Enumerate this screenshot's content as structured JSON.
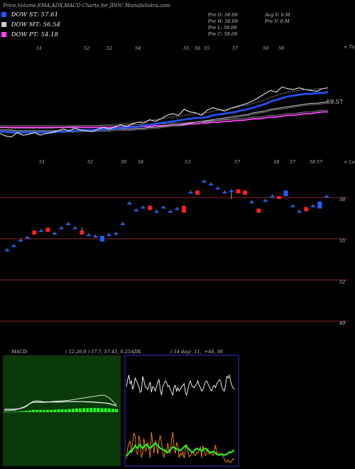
{
  "header": {
    "title": "Price,Volume,EMA,ADX,MACD Charts for JDOC MunafaSutra.com"
  },
  "legend": [
    {
      "label": "DOW ST: 57.61",
      "color": "#2255ff"
    },
    {
      "label": "DOW MT: 56.54",
      "color": "#cccccc"
    },
    {
      "label": "DOW PT: 54.18",
      "color": "#ff44ff"
    }
  ],
  "ohlc": {
    "open": "Pre   O: 58.09",
    "high": "Pre   H: 58.09",
    "low": "Pre   L: 58.09",
    "close": "Pre   C: 58.09",
    "avg_vol": "Avg V: 0   M",
    "pre_vol": "Pre   V: 0   M"
  },
  "top_panel": {
    "corner_label": "< Tops",
    "top_labels": [
      "51",
      "52",
      "52",
      "54",
      "55",
      "56",
      "55",
      "57",
      "59",
      "58"
    ],
    "price_label": "59.57",
    "bottom_labels": [
      "51",
      "51",
      "50",
      "54",
      "53",
      "57",
      "58",
      "57",
      "58",
      "57"
    ],
    "bottom_corner_label": "< Lows"
  },
  "colors": {
    "up": "#2060ff",
    "down": "#ff2222",
    "macd_bg": "#0a3a0a",
    "adx_border": "#3333cc"
  },
  "chart_data": [
    {
      "type": "line",
      "title": "EMA",
      "y_label": "59.57",
      "series": [
        {
          "name": "Price",
          "values": [
            56.8,
            56.5,
            56.4,
            56.9,
            56.6,
            56.7,
            56.9,
            56.6,
            56.8,
            56.9,
            57.1,
            57.3,
            57.1,
            57.4,
            57.2,
            57.1,
            57.0,
            57.3,
            57.5,
            57.3,
            57.6,
            57.8,
            57.6,
            57.9,
            58.1,
            58.0,
            58.4,
            58.2,
            58.5,
            58.9,
            59.1,
            58.9,
            59.6,
            59.3,
            59.2,
            58.9,
            59.5,
            59.8,
            59.6,
            59.4,
            59.7,
            59.9,
            60.1,
            60.3,
            60.6,
            61.0,
            61.4,
            61.8,
            61.6,
            62.2,
            62.0,
            61.9,
            62.1,
            61.9,
            61.8,
            61.7,
            62.0,
            62.1
          ]
        },
        {
          "name": "DOW ST",
          "values": [
            57.0,
            57.0,
            56.9,
            56.9,
            56.9,
            56.9,
            56.9,
            56.9,
            56.9,
            56.9,
            57.0,
            57.0,
            57.1,
            57.1,
            57.2,
            57.2,
            57.2,
            57.2,
            57.3,
            57.3,
            57.4,
            57.4,
            57.5,
            57.5,
            57.6,
            57.7,
            57.8,
            57.9,
            58.0,
            58.1,
            58.2,
            58.3,
            58.4,
            58.5,
            58.6,
            58.6,
            58.7,
            58.9,
            59.0,
            59.1,
            59.2,
            59.3,
            59.5,
            59.6,
            59.8,
            60.0,
            60.2,
            60.5,
            60.7,
            60.9,
            61.1,
            61.2,
            61.3,
            61.4,
            61.4,
            61.5,
            61.5,
            61.6
          ]
        },
        {
          "name": "DOW MT",
          "values": [
            57.2,
            57.2,
            57.2,
            57.1,
            57.1,
            57.1,
            57.1,
            57.1,
            57.1,
            57.1,
            57.1,
            57.1,
            57.1,
            57.1,
            57.1,
            57.2,
            57.2,
            57.2,
            57.2,
            57.2,
            57.3,
            57.3,
            57.3,
            57.3,
            57.4,
            57.4,
            57.5,
            57.5,
            57.6,
            57.7,
            57.8,
            57.8,
            57.9,
            58.0,
            58.1,
            58.2,
            58.3,
            58.4,
            58.5,
            58.6,
            58.7,
            58.8,
            58.9,
            59.0,
            59.2,
            59.3,
            59.4,
            59.6,
            59.7,
            59.8,
            59.9,
            60.0,
            60.1,
            60.2,
            60.3,
            60.3,
            60.4,
            60.5
          ]
        },
        {
          "name": "DOW PT",
          "values": [
            57.5,
            57.5,
            57.5,
            57.5,
            57.5,
            57.5,
            57.5,
            57.5,
            57.5,
            57.5,
            57.5,
            57.5,
            57.5,
            57.5,
            57.5,
            57.5,
            57.5,
            57.5,
            57.5,
            57.5,
            57.5,
            57.5,
            57.6,
            57.6,
            57.6,
            57.6,
            57.6,
            57.7,
            57.7,
            57.7,
            57.8,
            57.8,
            57.8,
            57.9,
            57.9,
            58.0,
            58.0,
            58.1,
            58.1,
            58.2,
            58.2,
            58.3,
            58.3,
            58.4,
            58.5,
            58.5,
            58.6,
            58.7,
            58.7,
            58.8,
            58.9,
            58.9,
            59.0,
            59.1,
            59.1,
            59.2,
            59.3,
            59.3
          ]
        }
      ]
    },
    {
      "type": "candlestick",
      "title": "Price",
      "y_ticks": [
        58,
        55,
        52,
        49
      ],
      "ylim": [
        48.5,
        60
      ],
      "candles": [
        {
          "o": 54.2,
          "c": 54.2,
          "h": 54.3,
          "l": 54.1,
          "d": "up"
        },
        {
          "o": 54.5,
          "c": 54.5,
          "h": 54.6,
          "l": 54.4,
          "d": "up"
        },
        {
          "o": 54.9,
          "c": 54.9,
          "h": 55.0,
          "l": 54.8,
          "d": "up"
        },
        {
          "o": 55.1,
          "c": 55.1,
          "h": 55.2,
          "l": 55.0,
          "d": "up"
        },
        {
          "o": 55.6,
          "c": 55.3,
          "h": 55.6,
          "l": 55.3,
          "d": "down"
        },
        {
          "o": 55.6,
          "c": 55.6,
          "h": 55.7,
          "l": 55.5,
          "d": "up"
        },
        {
          "o": 55.8,
          "c": 55.5,
          "h": 55.8,
          "l": 55.5,
          "d": "down"
        },
        {
          "o": 55.4,
          "c": 55.4,
          "h": 55.5,
          "l": 55.3,
          "d": "up"
        },
        {
          "o": 55.8,
          "c": 55.8,
          "h": 55.9,
          "l": 55.7,
          "d": "up"
        },
        {
          "o": 56.1,
          "c": 56.1,
          "h": 56.2,
          "l": 56.0,
          "d": "up"
        },
        {
          "o": 55.8,
          "c": 55.8,
          "h": 55.9,
          "l": 55.7,
          "d": "up"
        },
        {
          "o": 55.6,
          "c": 55.3,
          "h": 55.8,
          "l": 55.3,
          "d": "down"
        },
        {
          "o": 55.3,
          "c": 55.3,
          "h": 55.4,
          "l": 55.2,
          "d": "up"
        },
        {
          "o": 55.2,
          "c": 55.2,
          "h": 55.3,
          "l": 55.1,
          "d": "up"
        },
        {
          "o": 55.2,
          "c": 54.8,
          "h": 55.2,
          "l": 54.8,
          "d": "up"
        },
        {
          "o": 55.3,
          "c": 55.3,
          "h": 55.4,
          "l": 55.2,
          "d": "up"
        },
        {
          "o": 55.4,
          "c": 55.4,
          "h": 55.5,
          "l": 55.3,
          "d": "up"
        },
        {
          "o": 56.1,
          "c": 56.1,
          "h": 56.2,
          "l": 56.0,
          "d": "up"
        },
        {
          "o": 57.6,
          "c": 57.6,
          "h": 57.7,
          "l": 57.5,
          "d": "up"
        },
        {
          "o": 57.1,
          "c": 57.1,
          "h": 57.2,
          "l": 57.0,
          "d": "up"
        },
        {
          "o": 57.3,
          "c": 57.3,
          "h": 57.4,
          "l": 57.2,
          "d": "up"
        },
        {
          "o": 57.4,
          "c": 57.1,
          "h": 57.4,
          "l": 57.1,
          "d": "down"
        },
        {
          "o": 57.0,
          "c": 57.0,
          "h": 57.1,
          "l": 56.9,
          "d": "up"
        },
        {
          "o": 57.3,
          "c": 57.3,
          "h": 57.4,
          "l": 57.2,
          "d": "up"
        },
        {
          "o": 57.0,
          "c": 57.0,
          "h": 57.1,
          "l": 56.9,
          "d": "up"
        },
        {
          "o": 57.2,
          "c": 57.2,
          "h": 57.3,
          "l": 57.1,
          "d": "up"
        },
        {
          "o": 57.4,
          "c": 56.9,
          "h": 57.4,
          "l": 56.9,
          "d": "down"
        },
        {
          "o": 58.4,
          "c": 58.4,
          "h": 58.5,
          "l": 58.3,
          "d": "up"
        },
        {
          "o": 58.5,
          "c": 58.2,
          "h": 58.5,
          "l": 58.2,
          "d": "down"
        },
        {
          "o": 59.2,
          "c": 59.2,
          "h": 59.3,
          "l": 59.1,
          "d": "up"
        },
        {
          "o": 59.0,
          "c": 59.0,
          "h": 59.1,
          "l": 58.9,
          "d": "up"
        },
        {
          "o": 58.7,
          "c": 58.7,
          "h": 58.8,
          "l": 58.6,
          "d": "up"
        },
        {
          "o": 58.4,
          "c": 58.4,
          "h": 58.5,
          "l": 58.3,
          "d": "up"
        },
        {
          "o": 58.5,
          "c": 58.5,
          "h": 58.6,
          "l": 57.9,
          "d": "up"
        },
        {
          "o": 58.6,
          "c": 58.3,
          "h": 58.6,
          "l": 58.3,
          "d": "down"
        },
        {
          "o": 58.5,
          "c": 58.2,
          "h": 58.5,
          "l": 58.2,
          "d": "down"
        },
        {
          "o": 57.7,
          "c": 57.7,
          "h": 57.8,
          "l": 57.6,
          "d": "up"
        },
        {
          "o": 57.2,
          "c": 56.9,
          "h": 57.2,
          "l": 56.9,
          "d": "down"
        },
        {
          "o": 57.8,
          "c": 57.8,
          "h": 57.9,
          "l": 57.7,
          "d": "up"
        },
        {
          "o": 58.1,
          "c": 58.1,
          "h": 58.2,
          "l": 58.0,
          "d": "up"
        },
        {
          "o": 58.1,
          "c": 57.9,
          "h": 58.1,
          "l": 57.9,
          "d": "down"
        },
        {
          "o": 58.1,
          "c": 58.5,
          "h": 58.5,
          "l": 58.1,
          "d": "up"
        },
        {
          "o": 57.4,
          "c": 57.4,
          "h": 57.5,
          "l": 57.3,
          "d": "up"
        },
        {
          "o": 57.0,
          "c": 57.0,
          "h": 57.1,
          "l": 56.9,
          "d": "up"
        },
        {
          "o": 57.3,
          "c": 57.0,
          "h": 57.3,
          "l": 57.0,
          "d": "down"
        },
        {
          "o": 57.4,
          "c": 57.4,
          "h": 57.5,
          "l": 57.3,
          "d": "up"
        },
        {
          "o": 57.2,
          "c": 57.7,
          "h": 57.7,
          "l": 57.2,
          "d": "up"
        },
        {
          "o": 58.1,
          "c": 58.1,
          "h": 58.2,
          "l": 58.0,
          "d": "up"
        }
      ]
    },
    {
      "type": "line",
      "title": "MACD",
      "label": "MACD:",
      "params": "( 12,26,9 ) 57.7, 57.45, 0.25",
      "series": [
        {
          "name": "MACD",
          "values": [
            0.1,
            0.1,
            0.1,
            0.1,
            0.12,
            0.15,
            0.2,
            0.3,
            0.35,
            0.35,
            0.35,
            0.35,
            0.36,
            0.36,
            0.36,
            0.36,
            0.36,
            0.37,
            0.37,
            0.37,
            0.37,
            0.37,
            0.37,
            0.36,
            0.36,
            0.35,
            0.34,
            0.33,
            0.32,
            0.3,
            0.26,
            0.22
          ]
        },
        {
          "name": "Signal",
          "values": [
            0.05,
            0.05,
            0.06,
            0.08,
            0.12,
            0.16,
            0.22,
            0.3,
            0.38,
            0.4,
            0.38,
            0.36,
            0.36,
            0.37,
            0.38,
            0.39,
            0.4,
            0.41,
            0.42,
            0.44,
            0.46,
            0.48,
            0.5,
            0.52,
            0.54,
            0.56,
            0.58,
            0.6,
            0.58,
            0.5,
            0.38,
            0.25
          ]
        },
        {
          "name": "Histogram",
          "values": [
            0.0,
            0.0,
            0.0,
            0.02,
            0.02,
            0.03,
            0.05,
            0.06,
            0.08,
            0.08,
            0.08,
            0.07,
            0.08,
            0.08,
            0.09,
            0.1,
            0.1,
            0.1,
            0.11,
            0.12,
            0.13,
            0.13,
            0.14,
            0.14,
            0.15,
            0.15,
            0.15,
            0.14,
            0.14,
            0.13,
            0.12,
            0.11
          ]
        }
      ]
    },
    {
      "type": "line",
      "title": "ADX",
      "label": "ADX",
      "params": "( 14 day)  11,  +44, 36",
      "series": [
        {
          "name": "+DI",
          "values": [
            0.18,
            0.42,
            0.52,
            0.6,
            0.3,
            0.55,
            0.78,
            0.7,
            0.32,
            0.28,
            0.72,
            0.6,
            0.2,
            0.3,
            0.65,
            0.35,
            0.4,
            0.55,
            0.4,
            0.2,
            0.8,
            0.55,
            0.3,
            0.6,
            0.5,
            0.28,
            0.6,
            0.72,
            0.55,
            0.3,
            0.2,
            0.4,
            0.3,
            0.55,
            0.35,
            0.3,
            0.62,
            0.8,
            0.45,
            0.3,
            0.55,
            0.48,
            0.2,
            0.3,
            0.25,
            0.35,
            0.18,
            0.4,
            0.52,
            0.35,
            0.22,
            0.25,
            0.3,
            0.35,
            0.28,
            0.25,
            0.32,
            0.3,
            0.38,
            0.45,
            0.2,
            0.48,
            0.35,
            0.25,
            0.3,
            0.4,
            0.28,
            0.32,
            0.3,
            0.25,
            0.35,
            0.5,
            0.3,
            0.32,
            0.3,
            0.28,
            0.3,
            0.22,
            0.18,
            0.1,
            0.1,
            0.15,
            0.1,
            0.08,
            0.12,
            0.18,
            0.15
          ]
        },
        {
          "name": "-DI",
          "values": [
            0.7,
            0.82,
            0.9,
            0.75,
            0.8,
            0.65,
            0.72,
            0.85,
            0.8,
            0.75,
            0.7,
            0.6,
            0.62,
            0.88,
            0.8,
            0.7,
            0.68,
            0.65,
            0.72,
            0.78,
            0.6,
            0.7,
            0.68,
            0.62,
            0.7,
            0.78,
            0.82,
            0.65,
            0.55,
            0.7,
            0.75,
            0.8,
            0.78,
            0.7,
            0.72,
            0.65,
            0.6,
            0.55,
            0.7,
            0.72,
            0.62,
            0.68,
            0.62,
            0.65,
            0.7,
            0.72,
            0.75,
            0.6,
            0.55,
            0.65,
            0.75,
            0.8,
            0.72,
            0.7,
            0.68,
            0.72,
            0.75,
            0.8,
            0.72,
            0.68,
            0.62,
            0.65,
            0.72,
            0.78,
            0.8,
            0.75,
            0.7,
            0.65,
            0.62,
            0.7,
            0.72,
            0.68,
            0.75,
            0.78,
            0.82,
            0.8,
            0.7,
            0.65,
            0.62,
            0.72,
            0.88,
            0.85,
            0.9,
            0.8,
            0.72,
            0.68,
            0.65
          ]
        },
        {
          "name": "ADX",
          "values": [
            0.15,
            0.2,
            0.25,
            0.35,
            0.3,
            0.4,
            0.45,
            0.55,
            0.5,
            0.45,
            0.55,
            0.6,
            0.5,
            0.45,
            0.5,
            0.55,
            0.6,
            0.55,
            0.5,
            0.45,
            0.5,
            0.55,
            0.6,
            0.65,
            0.6,
            0.55,
            0.5,
            0.45,
            0.42,
            0.4,
            0.38,
            0.35,
            0.3,
            0.28,
            0.35,
            0.4,
            0.45,
            0.5,
            0.48,
            0.45,
            0.42,
            0.4,
            0.38,
            0.35,
            0.4,
            0.45,
            0.5,
            0.55,
            0.5,
            0.45,
            0.4,
            0.35,
            0.3,
            0.28,
            0.35,
            0.4,
            0.45,
            0.42,
            0.4,
            0.38,
            0.35,
            0.38,
            0.42,
            0.45,
            0.4,
            0.35,
            0.3,
            0.28,
            0.3,
            0.32,
            0.3,
            0.25,
            0.22,
            0.2,
            0.18,
            0.2,
            0.22,
            0.2,
            0.18,
            0.2,
            0.22,
            0.25,
            0.3,
            0.28,
            0.3,
            0.35,
            0.38
          ]
        }
      ]
    }
  ]
}
